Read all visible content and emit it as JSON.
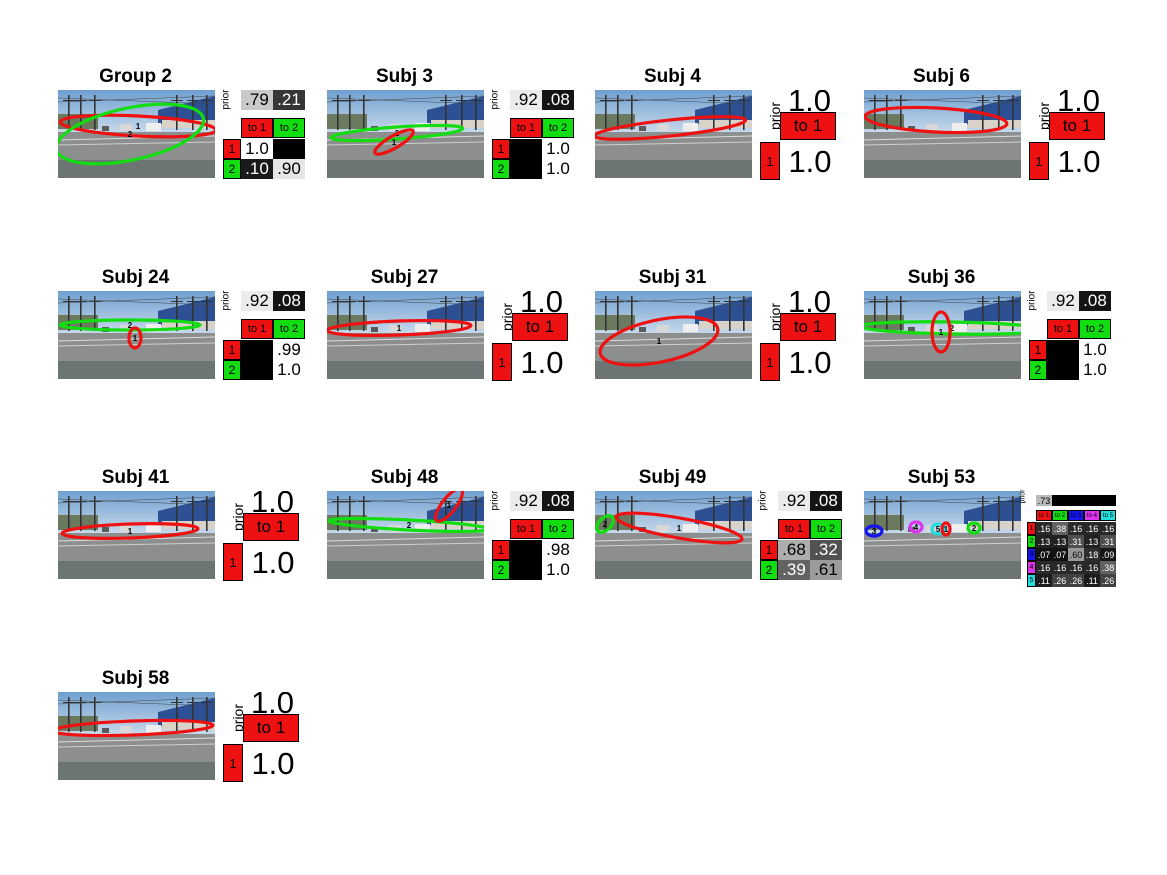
{
  "colors": {
    "cluster1": "#ee1111",
    "cluster2": "#11dd11",
    "cluster3": "#1515ee",
    "cluster4": "#dd33ee",
    "cluster5": "#22dddd"
  },
  "labels": {
    "prior": "prior"
  },
  "panels": [
    {
      "title": "Group 2",
      "k": 2,
      "prior": [
        0.79,
        0.21
      ],
      "prior_text": [
        ".79",
        ".21"
      ],
      "headers": [
        "to 1",
        "to 2"
      ],
      "rows": [
        "1",
        "2"
      ],
      "trans": [
        [
          1.0,
          0.0
        ],
        [
          0.1,
          0.9
        ]
      ],
      "trans_text": [
        [
          "1.0",
          ""
        ],
        [
          ".10",
          ".90"
        ]
      ],
      "ellipses": [
        {
          "c": 1,
          "cx": 80,
          "cy": 36,
          "rx": 78,
          "ry": 10,
          "rot": 3,
          "label": "1"
        },
        {
          "c": 2,
          "cx": 72,
          "cy": 44,
          "rx": 75,
          "ry": 26,
          "rot": -12,
          "label": "2"
        }
      ]
    },
    {
      "title": "Subj 3",
      "k": 2,
      "prior": [
        0.92,
        0.08
      ],
      "prior_text": [
        ".92",
        ".08"
      ],
      "headers": [
        "to 1",
        "to 2"
      ],
      "rows": [
        "1",
        "2"
      ],
      "trans": [
        [
          0.0,
          1.0
        ],
        [
          0.0,
          1.0
        ]
      ],
      "trans_text": [
        [
          "",
          "1.0"
        ],
        [
          "",
          "1.0"
        ]
      ],
      "ellipses": [
        {
          "c": 2,
          "cx": 70,
          "cy": 43,
          "rx": 66,
          "ry": 6,
          "rot": -4,
          "label": "2"
        },
        {
          "c": 1,
          "cx": 67,
          "cy": 52,
          "rx": 22,
          "ry": 6,
          "rot": -30,
          "label": "1"
        }
      ]
    },
    {
      "title": "Subj 4",
      "k": 1,
      "prior": [
        1.0
      ],
      "prior_text": [
        "1.0"
      ],
      "headers": [
        "to 1"
      ],
      "rows": [
        "1"
      ],
      "trans": [
        [
          1.0
        ]
      ],
      "trans_text": [
        [
          "1.0"
        ]
      ],
      "ellipses": [
        {
          "c": 1,
          "cx": 75,
          "cy": 38,
          "rx": 76,
          "ry": 8,
          "rot": -6,
          "label": ""
        }
      ]
    },
    {
      "title": "Subj 6",
      "k": 1,
      "prior": [
        1.0
      ],
      "prior_text": [
        "1.0"
      ],
      "headers": [
        "to 1"
      ],
      "rows": [
        "1"
      ],
      "trans": [
        [
          1.0
        ]
      ],
      "trans_text": [
        [
          "1.0"
        ]
      ],
      "ellipses": [
        {
          "c": 1,
          "cx": 72,
          "cy": 30,
          "rx": 71,
          "ry": 12,
          "rot": 3,
          "label": ""
        }
      ]
    },
    {
      "title": "Subj 24",
      "k": 2,
      "prior": [
        0.92,
        0.08
      ],
      "prior_text": [
        ".92",
        ".08"
      ],
      "headers": [
        "to 1",
        "to 2"
      ],
      "rows": [
        "1",
        "2"
      ],
      "trans": [
        [
          0.0,
          0.99
        ],
        [
          0.0,
          1.0
        ]
      ],
      "trans_text": [
        [
          "",
          ".99"
        ],
        [
          "",
          "1.0"
        ]
      ],
      "ellipses": [
        {
          "c": 2,
          "cx": 72,
          "cy": 34,
          "rx": 70,
          "ry": 5,
          "rot": 0,
          "label": "2"
        },
        {
          "c": 1,
          "cx": 77,
          "cy": 47,
          "rx": 6,
          "ry": 10,
          "rot": 0,
          "label": "1"
        }
      ]
    },
    {
      "title": "Subj 27",
      "k": 1,
      "prior": [
        1.0
      ],
      "prior_text": [
        "1.0"
      ],
      "headers": [
        "to 1"
      ],
      "rows": [
        "1"
      ],
      "trans": [
        [
          1.0
        ]
      ],
      "trans_text": [
        [
          "1.0"
        ]
      ],
      "ellipses": [
        {
          "c": 1,
          "cx": 72,
          "cy": 37,
          "rx": 72,
          "ry": 7,
          "rot": -2,
          "label": "1"
        }
      ]
    },
    {
      "title": "Subj 31",
      "k": 1,
      "prior": [
        1.0
      ],
      "prior_text": [
        "1.0"
      ],
      "headers": [
        "to 1"
      ],
      "rows": [
        "1"
      ],
      "trans": [
        [
          1.0
        ]
      ],
      "trans_text": [
        [
          "1.0"
        ]
      ],
      "ellipses": [
        {
          "c": 1,
          "cx": 64,
          "cy": 50,
          "rx": 60,
          "ry": 21,
          "rot": -12,
          "label": "1"
        }
      ]
    },
    {
      "title": "Subj 36",
      "k": 2,
      "prior": [
        0.92,
        0.08
      ],
      "prior_text": [
        ".92",
        ".08"
      ],
      "headers": [
        "to 1",
        "to 2"
      ],
      "rows": [
        "1",
        "2"
      ],
      "trans": [
        [
          0.0,
          1.0
        ],
        [
          0.0,
          1.0
        ]
      ],
      "trans_text": [
        [
          "",
          "1.0"
        ],
        [
          "",
          "1.0"
        ]
      ],
      "ellipses": [
        {
          "c": 2,
          "cx": 88,
          "cy": 37,
          "rx": 92,
          "ry": 6,
          "rot": 1,
          "label": "2"
        },
        {
          "c": 1,
          "cx": 77,
          "cy": 41,
          "rx": 9,
          "ry": 20,
          "rot": 0,
          "label": "1"
        }
      ]
    },
    {
      "title": "Subj 41",
      "k": 1,
      "prior": [
        1.0
      ],
      "prior_text": [
        "1.0"
      ],
      "headers": [
        "to 1"
      ],
      "rows": [
        "1"
      ],
      "trans": [
        [
          1.0
        ]
      ],
      "trans_text": [
        [
          "1.0"
        ]
      ],
      "ellipses": [
        {
          "c": 1,
          "cx": 72,
          "cy": 40,
          "rx": 68,
          "ry": 7,
          "rot": -2,
          "label": "1"
        }
      ]
    },
    {
      "title": "Subj 48",
      "k": 2,
      "prior": [
        0.92,
        0.08
      ],
      "prior_text": [
        ".92",
        ".08"
      ],
      "headers": [
        "to 1",
        "to 2"
      ],
      "rows": [
        "1",
        "2"
      ],
      "trans": [
        [
          0.0,
          0.98
        ],
        [
          0.0,
          1.0
        ]
      ],
      "trans_text": [
        [
          "",
          ".98"
        ],
        [
          "",
          "1.0"
        ]
      ],
      "ellipses": [
        {
          "c": 2,
          "cx": 82,
          "cy": 34,
          "rx": 80,
          "ry": 5,
          "rot": 3,
          "label": "2"
        },
        {
          "c": 1,
          "cx": 122,
          "cy": 14,
          "rx": 20,
          "ry": 7,
          "rot": -52,
          "label": "1"
        }
      ]
    },
    {
      "title": "Subj 49",
      "k": 2,
      "prior": [
        0.92,
        0.08
      ],
      "prior_text": [
        ".92",
        ".08"
      ],
      "headers": [
        "to 1",
        "to 2"
      ],
      "rows": [
        "1",
        "2"
      ],
      "trans": [
        [
          0.68,
          0.32
        ],
        [
          0.39,
          0.61
        ]
      ],
      "trans_text": [
        [
          ".68",
          ".32"
        ],
        [
          ".39",
          ".61"
        ]
      ],
      "ellipses": [
        {
          "c": 1,
          "cx": 84,
          "cy": 37,
          "rx": 64,
          "ry": 10,
          "rot": 10,
          "label": "1"
        },
        {
          "c": 2,
          "cx": 10,
          "cy": 33,
          "rx": 10,
          "ry": 6,
          "rot": -45,
          "label": "2"
        }
      ]
    },
    {
      "title": "Subj 53",
      "k": 5,
      "prior": [
        0.73,
        0.0,
        0.0,
        0.0,
        0.0
      ],
      "prior_text": [
        ".73",
        "",
        "",
        "",
        ""
      ],
      "headers": [
        "to 1",
        "to 2",
        "to 3",
        "to 4",
        "to 5"
      ],
      "rows": [
        "1",
        "2",
        "3",
        "4",
        "5"
      ],
      "trans": [
        [
          0.16,
          0.38,
          0.16,
          0.16,
          0.16
        ],
        [
          0.13,
          0.13,
          0.31,
          0.13,
          0.31
        ],
        [
          0.07,
          0.07,
          0.6,
          0.18,
          0.09
        ],
        [
          0.16,
          0.16,
          0.16,
          0.16,
          0.38
        ],
        [
          0.11,
          0.26,
          0.26,
          0.11,
          0.26
        ]
      ],
      "trans_text": [
        [
          ".16",
          ".38",
          ".16",
          ".16",
          ".16"
        ],
        [
          ".13",
          ".13",
          ".31",
          ".13",
          ".31"
        ],
        [
          ".07",
          ".07",
          ".60",
          ".18",
          ".09"
        ],
        [
          ".16",
          ".16",
          ".16",
          ".16",
          ".38"
        ],
        [
          ".11",
          ".26",
          ".26",
          ".11",
          ".26"
        ]
      ],
      "ellipses": [
        {
          "c": 3,
          "cx": 10,
          "cy": 40,
          "rx": 8,
          "ry": 5,
          "rot": 0,
          "label": "3"
        },
        {
          "c": 4,
          "cx": 52,
          "cy": 36,
          "rx": 6,
          "ry": 5,
          "rot": 0,
          "label": "4"
        },
        {
          "c": 5,
          "cx": 74,
          "cy": 38,
          "rx": 6,
          "ry": 5,
          "rot": 0,
          "label": "5"
        },
        {
          "c": 1,
          "cx": 82,
          "cy": 38,
          "rx": 4,
          "ry": 6,
          "rot": 0,
          "label": "1"
        },
        {
          "c": 2,
          "cx": 110,
          "cy": 37,
          "rx": 6,
          "ry": 5,
          "rot": 0,
          "label": "2"
        }
      ]
    },
    {
      "title": "Subj 58",
      "k": 1,
      "prior": [
        1.0
      ],
      "prior_text": [
        "1.0"
      ],
      "headers": [
        "to 1"
      ],
      "rows": [
        "1"
      ],
      "trans": [
        [
          1.0
        ]
      ],
      "trans_text": [
        [
          "1.0"
        ]
      ],
      "ellipses": [
        {
          "c": 1,
          "cx": 75,
          "cy": 36,
          "rx": 80,
          "ry": 7,
          "rot": -2,
          "label": ""
        }
      ]
    }
  ]
}
